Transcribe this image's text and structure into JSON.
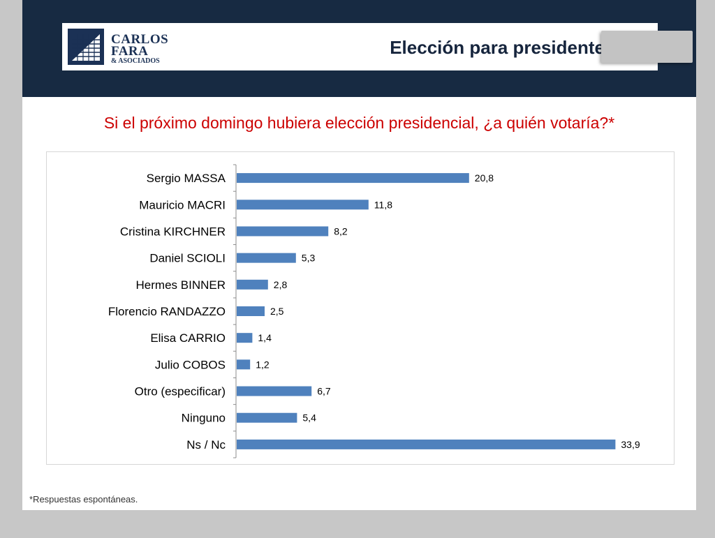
{
  "header": {
    "logo": {
      "line1": "CARLOS",
      "line2": "FARA",
      "line3": "& ASOCIADOS"
    },
    "title": "Elección para presidente"
  },
  "question": "Si el próximo domingo hubiera elección presidencial, ¿a quién votaría?*",
  "footnote": "*Respuestas espontáneas.",
  "colors": {
    "bar": "#4f81bd",
    "header": "#172a42",
    "question": "#cc0000"
  },
  "chart_data": {
    "type": "bar",
    "orientation": "horizontal",
    "categories": [
      "Sergio MASSA",
      "Mauricio MACRI",
      "Cristina KIRCHNER",
      "Daniel SCIOLI",
      "Hermes BINNER",
      "Florencio RANDAZZO",
      "Elisa CARRIO",
      "Julio COBOS",
      "Otro (especificar)",
      "Ninguno",
      "Ns / Nc"
    ],
    "values": [
      20.8,
      11.8,
      8.2,
      5.3,
      2.8,
      2.5,
      1.4,
      1.2,
      6.7,
      5.4,
      33.9
    ],
    "value_labels": [
      "20,8",
      "11,8",
      "8,2",
      "5,3",
      "2,8",
      "2,5",
      "1,4",
      "1,2",
      "6,7",
      "5,4",
      "33,9"
    ],
    "title": "",
    "xlabel": "",
    "ylabel": "",
    "xlim": [
      0,
      35
    ],
    "grid": false,
    "legend": "none"
  }
}
